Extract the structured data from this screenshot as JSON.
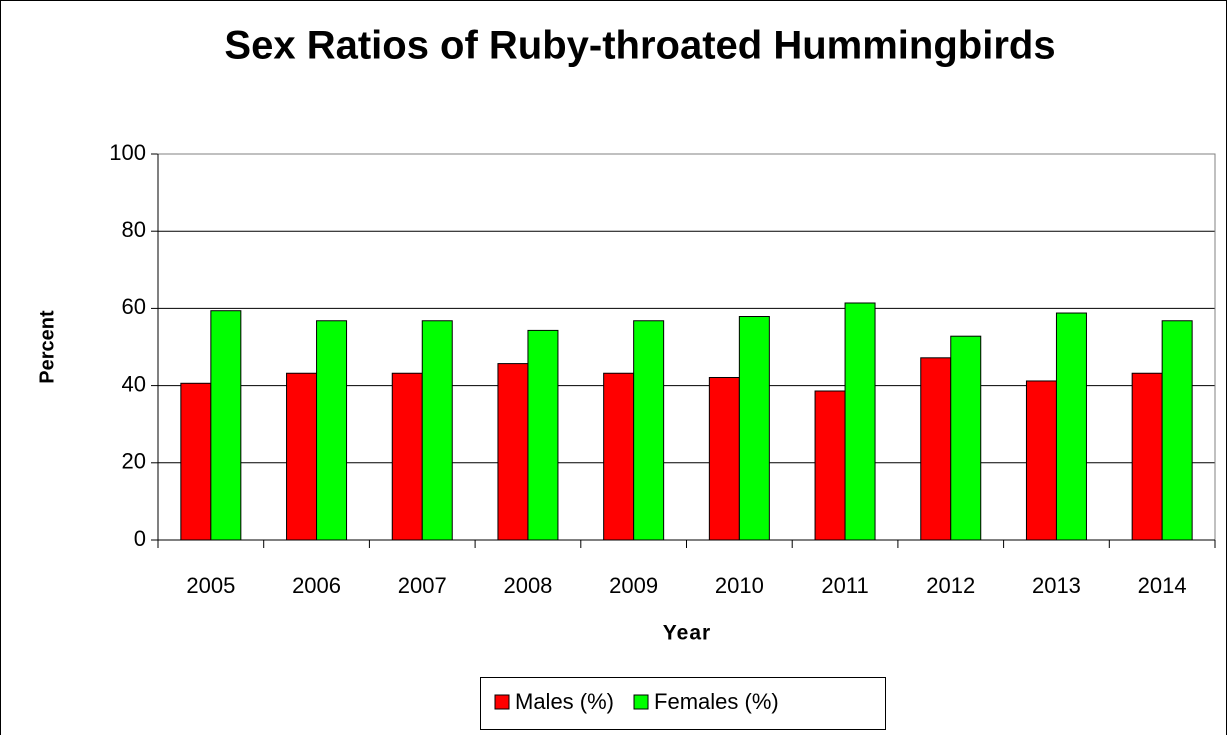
{
  "chart_data": {
    "type": "bar",
    "title": "Sex Ratios of Ruby-throated Hummingbirds",
    "x_label": "Year",
    "y_label": "Percent",
    "categories": [
      "2005",
      "2006",
      "2007",
      "2008",
      "2009",
      "2010",
      "2011",
      "2012",
      "2013",
      "2014"
    ],
    "series": [
      {
        "name": "Males (%)",
        "color": "#ff0000",
        "values": [
          40.6,
          43.2,
          43.2,
          45.7,
          43.2,
          42.1,
          38.6,
          47.2,
          41.2,
          43.2
        ]
      },
      {
        "name": "Females (%)",
        "color": "#00ff00",
        "values": [
          59.4,
          56.8,
          56.8,
          54.3,
          56.8,
          57.9,
          61.4,
          52.8,
          58.8,
          56.8
        ]
      }
    ],
    "ylim": [
      0,
      100
    ],
    "yticks": [
      0,
      20,
      40,
      60,
      80,
      100
    ],
    "grid": true,
    "legend": "bottom"
  }
}
